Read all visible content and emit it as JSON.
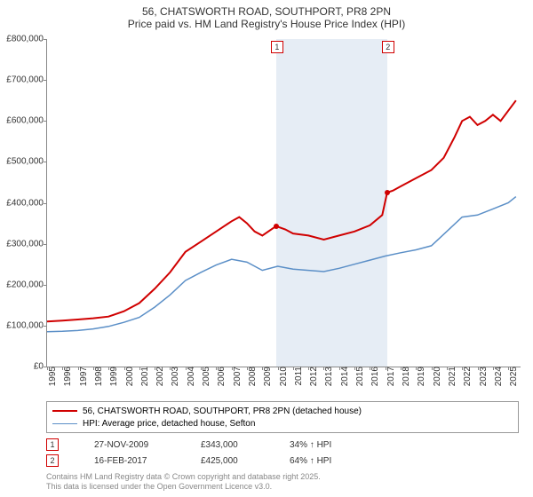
{
  "title": {
    "line1": "56, CHATSWORTH ROAD, SOUTHPORT, PR8 2PN",
    "line2": "Price paid vs. HM Land Registry's House Price Index (HPI)"
  },
  "chart": {
    "type": "line",
    "background_color": "#ffffff",
    "shaded_color": "#e6edf5",
    "axis_color": "#888888",
    "ylim": [
      0,
      800000
    ],
    "ytick_step": 100000,
    "y_labels": [
      "£0",
      "£100,000",
      "£200,000",
      "£300,000",
      "£400,000",
      "£500,000",
      "£600,000",
      "£700,000",
      "£800,000"
    ],
    "xlim": [
      1995,
      2025.8
    ],
    "x_labels": [
      "1995",
      "1996",
      "1997",
      "1998",
      "1999",
      "2000",
      "2001",
      "2002",
      "2003",
      "2004",
      "2005",
      "2006",
      "2007",
      "2008",
      "2009",
      "2010",
      "2011",
      "2012",
      "2013",
      "2014",
      "2015",
      "2016",
      "2017",
      "2018",
      "2019",
      "2020",
      "2021",
      "2022",
      "2023",
      "2024",
      "2025"
    ],
    "shaded_start": 2009.9,
    "shaded_end": 2017.12,
    "series": [
      {
        "name": "price_paid",
        "color": "#d00000",
        "width": 2,
        "points": [
          [
            1995,
            110000
          ],
          [
            1996,
            112000
          ],
          [
            1997,
            115000
          ],
          [
            1998,
            118000
          ],
          [
            1999,
            122000
          ],
          [
            2000,
            135000
          ],
          [
            2001,
            155000
          ],
          [
            2002,
            190000
          ],
          [
            2003,
            230000
          ],
          [
            2004,
            280000
          ],
          [
            2005,
            305000
          ],
          [
            2006,
            330000
          ],
          [
            2007,
            355000
          ],
          [
            2007.5,
            365000
          ],
          [
            2008,
            350000
          ],
          [
            2008.5,
            330000
          ],
          [
            2009,
            320000
          ],
          [
            2009.9,
            343000
          ],
          [
            2010.5,
            335000
          ],
          [
            2011,
            325000
          ],
          [
            2012,
            320000
          ],
          [
            2013,
            310000
          ],
          [
            2014,
            320000
          ],
          [
            2015,
            330000
          ],
          [
            2016,
            345000
          ],
          [
            2016.8,
            370000
          ],
          [
            2017.12,
            425000
          ],
          [
            2017.5,
            430000
          ],
          [
            2018,
            440000
          ],
          [
            2019,
            460000
          ],
          [
            2020,
            480000
          ],
          [
            2020.8,
            510000
          ],
          [
            2021.5,
            560000
          ],
          [
            2022,
            600000
          ],
          [
            2022.5,
            610000
          ],
          [
            2023,
            590000
          ],
          [
            2023.5,
            600000
          ],
          [
            2024,
            615000
          ],
          [
            2024.5,
            600000
          ],
          [
            2025,
            625000
          ],
          [
            2025.5,
            650000
          ]
        ]
      },
      {
        "name": "hpi",
        "color": "#5b8fc7",
        "width": 1.5,
        "points": [
          [
            1995,
            85000
          ],
          [
            1996,
            86000
          ],
          [
            1997,
            88000
          ],
          [
            1998,
            92000
          ],
          [
            1999,
            98000
          ],
          [
            2000,
            108000
          ],
          [
            2001,
            120000
          ],
          [
            2002,
            145000
          ],
          [
            2003,
            175000
          ],
          [
            2004,
            210000
          ],
          [
            2005,
            230000
          ],
          [
            2006,
            248000
          ],
          [
            2007,
            262000
          ],
          [
            2008,
            255000
          ],
          [
            2009,
            235000
          ],
          [
            2010,
            245000
          ],
          [
            2011,
            238000
          ],
          [
            2012,
            235000
          ],
          [
            2013,
            232000
          ],
          [
            2014,
            240000
          ],
          [
            2015,
            250000
          ],
          [
            2016,
            260000
          ],
          [
            2017,
            270000
          ],
          [
            2018,
            278000
          ],
          [
            2019,
            285000
          ],
          [
            2020,
            295000
          ],
          [
            2021,
            330000
          ],
          [
            2022,
            365000
          ],
          [
            2023,
            370000
          ],
          [
            2024,
            385000
          ],
          [
            2025,
            400000
          ],
          [
            2025.5,
            415000
          ]
        ]
      }
    ],
    "sale_markers": [
      {
        "num": "1",
        "x": 2009.9,
        "y": 343000
      },
      {
        "num": "2",
        "x": 2017.12,
        "y": 425000
      }
    ]
  },
  "legend": {
    "items": [
      {
        "color": "#d00000",
        "width": 2,
        "label": "56, CHATSWORTH ROAD, SOUTHPORT, PR8 2PN (detached house)"
      },
      {
        "color": "#5b8fc7",
        "width": 1.5,
        "label": "HPI: Average price, detached house, Sefton"
      }
    ]
  },
  "sales": [
    {
      "num": "1",
      "date": "27-NOV-2009",
      "price": "£343,000",
      "hpi": "34% ↑ HPI"
    },
    {
      "num": "2",
      "date": "16-FEB-2017",
      "price": "£425,000",
      "hpi": "64% ↑ HPI"
    }
  ],
  "footer": {
    "line1": "Contains HM Land Registry data © Crown copyright and database right 2025.",
    "line2": "This data is licensed under the Open Government Licence v3.0."
  }
}
